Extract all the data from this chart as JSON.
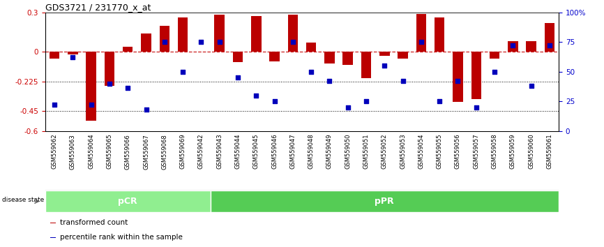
{
  "title": "GDS3721 / 231770_x_at",
  "samples": [
    "GSM559062",
    "GSM559063",
    "GSM559064",
    "GSM559065",
    "GSM559066",
    "GSM559067",
    "GSM559068",
    "GSM559069",
    "GSM559042",
    "GSM559043",
    "GSM559044",
    "GSM559045",
    "GSM559046",
    "GSM559047",
    "GSM559048",
    "GSM559049",
    "GSM559050",
    "GSM559051",
    "GSM559052",
    "GSM559053",
    "GSM559054",
    "GSM559055",
    "GSM559056",
    "GSM559057",
    "GSM559058",
    "GSM559059",
    "GSM559060",
    "GSM559061"
  ],
  "bar_values": [
    -0.05,
    -0.02,
    -0.52,
    -0.26,
    0.04,
    0.14,
    0.2,
    0.26,
    0.0,
    0.28,
    -0.08,
    0.27,
    -0.07,
    0.28,
    0.07,
    -0.09,
    -0.1,
    -0.2,
    -0.03,
    -0.05,
    0.29,
    0.26,
    -0.38,
    -0.36,
    -0.05,
    0.08,
    0.08,
    0.22
  ],
  "percentile_values": [
    22,
    62,
    22,
    40,
    36,
    18,
    75,
    50,
    75,
    75,
    45,
    30,
    25,
    75,
    50,
    42,
    20,
    25,
    55,
    42,
    75,
    25,
    42,
    20,
    50,
    72,
    38,
    72
  ],
  "pcr_count": 9,
  "ppr_count": 19,
  "groups": [
    {
      "label": "pCR",
      "color": "#7FCC7F"
    },
    {
      "label": "pPR",
      "color": "#55BB55"
    }
  ],
  "bar_color": "#BB0000",
  "dot_color": "#0000BB",
  "ylim_left": [
    -0.6,
    0.3
  ],
  "ylim_right": [
    0,
    100
  ],
  "yticks_left": [
    -0.6,
    -0.45,
    -0.225,
    0,
    0.3
  ],
  "ytick_labels_left": [
    "-0.6",
    "-0.45",
    "-0.225",
    "0",
    "0.3"
  ],
  "yticks_right": [
    0,
    25,
    50,
    75,
    100
  ],
  "ytick_labels_right": [
    "0",
    "25",
    "50",
    "75",
    "100%"
  ],
  "hlines": [
    -0.225,
    -0.45
  ],
  "zero_line_color": "#CC2222",
  "label_color_left": "#CC0000",
  "label_color_right": "#0000CC",
  "legend_items": [
    {
      "label": "transformed count",
      "color": "#BB0000"
    },
    {
      "label": "percentile rank within the sample",
      "color": "#0000BB"
    }
  ],
  "disease_state_label": "disease state",
  "xtick_bg": "#CCCCCC",
  "band_colors": [
    "#90EE90",
    "#55CC55"
  ]
}
